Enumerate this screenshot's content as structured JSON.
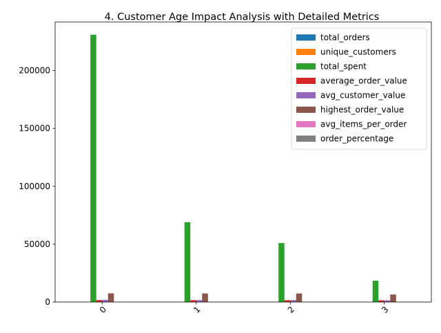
{
  "chart_data": {
    "type": "bar",
    "title": "4. Customer Age Impact Analysis with Detailed Metrics",
    "xlabel": "",
    "ylabel": "",
    "categories": [
      "0",
      "1",
      "2",
      "3"
    ],
    "ylim": [
      0,
      242000
    ],
    "yticks": [
      0,
      50000,
      100000,
      150000,
      200000
    ],
    "ytick_labels": [
      "0",
      "50000",
      "100000",
      "150000",
      "200000"
    ],
    "grid": false,
    "legend_position": "top-right",
    "series": [
      {
        "name": "total_orders",
        "color": "#1f77b4",
        "values": [
          30,
          10,
          7,
          3
        ]
      },
      {
        "name": "unique_customers",
        "color": "#ff7f0e",
        "values": [
          25,
          9,
          6,
          3
        ]
      },
      {
        "name": "total_spent",
        "color": "#2ca02c",
        "values": [
          231000,
          69000,
          51000,
          18500
        ]
      },
      {
        "name": "average_order_value",
        "color": "#d62728",
        "values": [
          1700,
          1600,
          1600,
          1500
        ]
      },
      {
        "name": "avg_customer_value",
        "color": "#9467bd",
        "values": [
          1900,
          1700,
          1700,
          1500
        ]
      },
      {
        "name": "highest_order_value",
        "color": "#8c564b",
        "values": [
          7500,
          7400,
          7400,
          6500
        ]
      },
      {
        "name": "avg_items_per_order",
        "color": "#e377c2",
        "values": [
          3,
          3,
          3,
          3
        ]
      },
      {
        "name": "order_percentage",
        "color": "#7f7f7f",
        "values": [
          48,
          17,
          12,
          5
        ]
      }
    ]
  }
}
